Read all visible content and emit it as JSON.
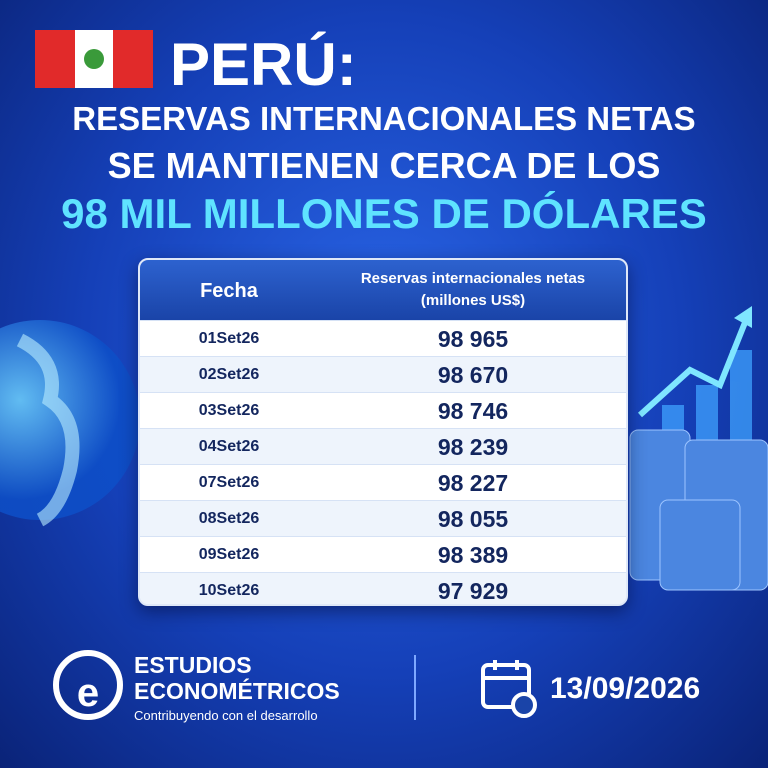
{
  "header": {
    "country": "PERÚ:",
    "title_line1": "RESERVAS INTERNACIONALES NETAS",
    "title_line2": "SE MANTIENEN CERCA DE LOS",
    "title_line3": "98 MIL MILLONES DE DÓLARES"
  },
  "table": {
    "columns": [
      "Fecha",
      "Reservas internacionales netas"
    ],
    "unit": "(millones US$)",
    "rows": [
      [
        "01Set26",
        "98 965"
      ],
      [
        "02Set26",
        "98 670"
      ],
      [
        "03Set26",
        "98 746"
      ],
      [
        "04Set26",
        "98 239"
      ],
      [
        "07Set26",
        "98 227"
      ],
      [
        "08Set26",
        "98 055"
      ],
      [
        "09Set26",
        "98 389"
      ],
      [
        "10Set26",
        "97 929"
      ]
    ]
  },
  "footer": {
    "logo_letter": "e",
    "brand_line1": "ESTUDIOS",
    "brand_line2": "ECONOMÉTRICOS",
    "tagline": "Contribuyendo con el desarrollo",
    "date": "13/09/2026"
  }
}
